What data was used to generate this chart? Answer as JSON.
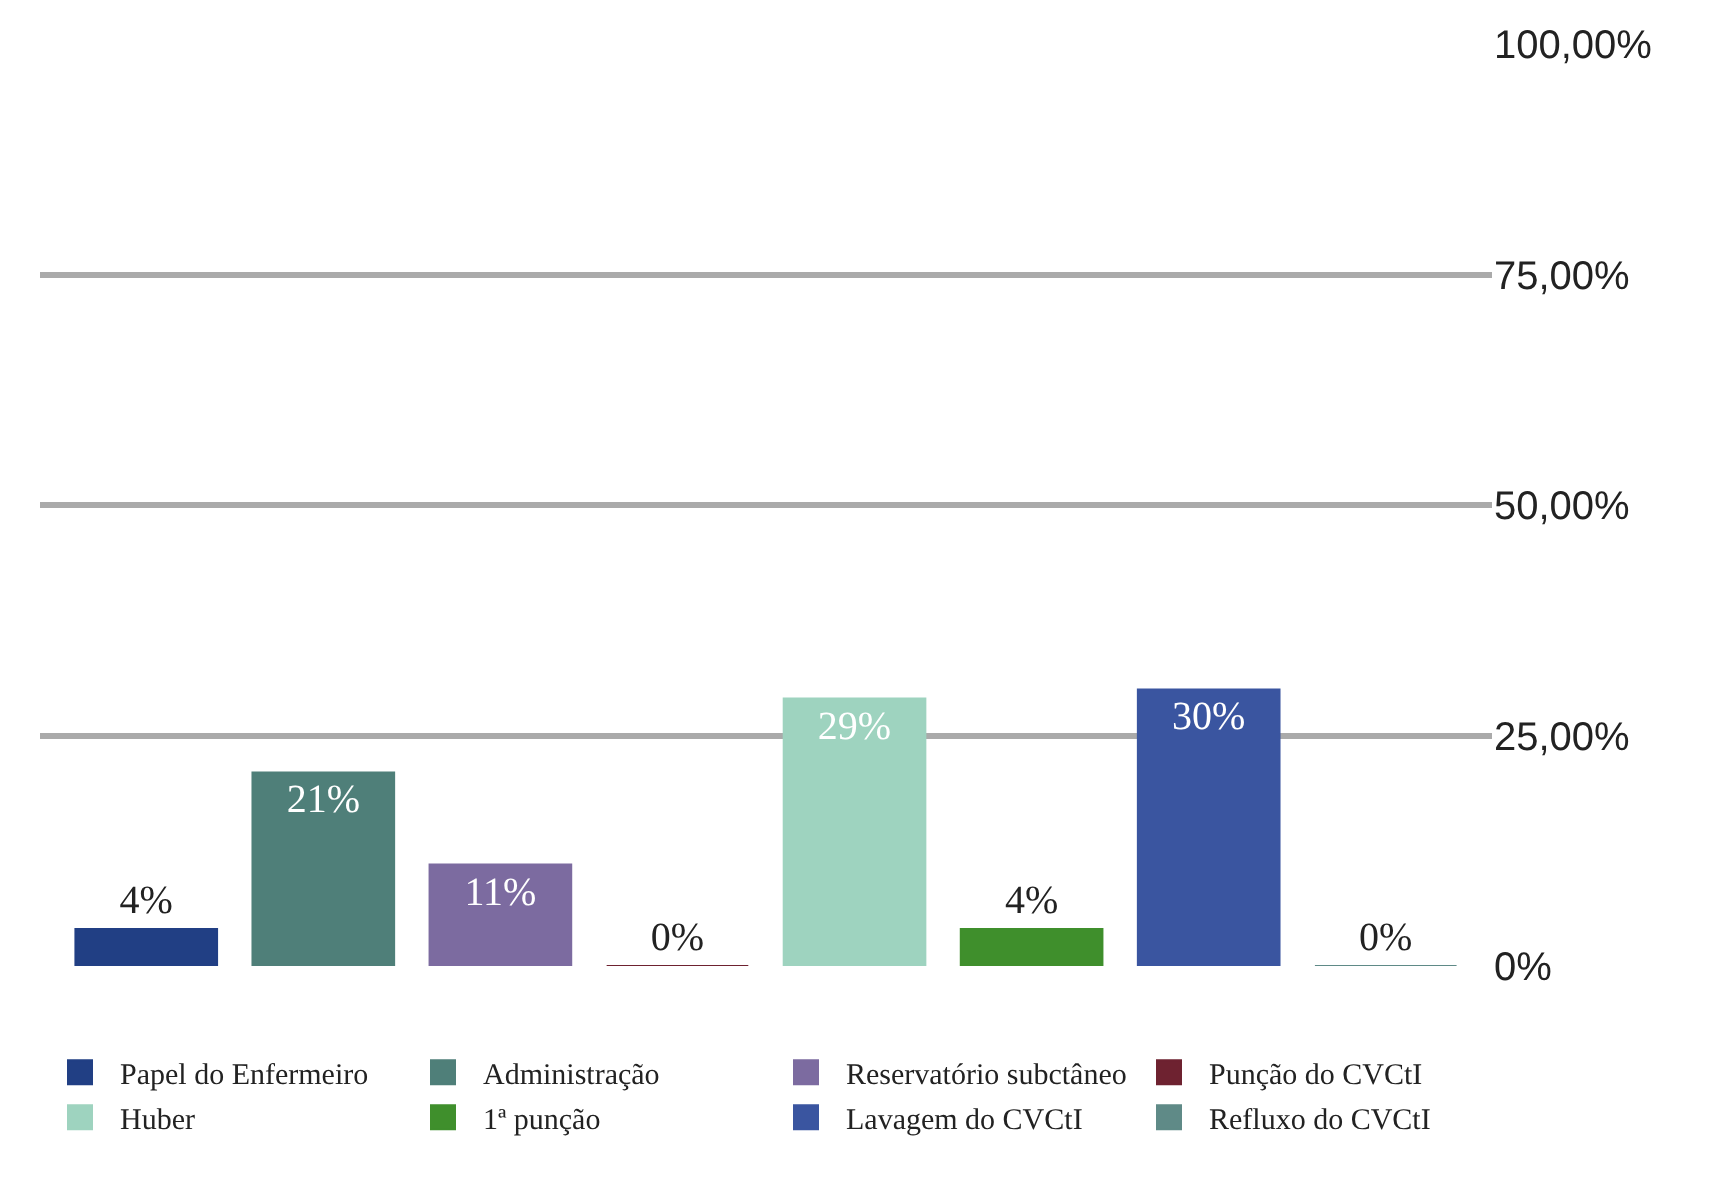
{
  "chart_data": {
    "type": "bar",
    "categories": [
      null,
      null,
      null,
      null,
      null,
      null,
      null,
      null
    ],
    "series": [
      {
        "name": "Papel do Enfermeiro",
        "color": "#213f84",
        "values": [
          4,
          null,
          null,
          null,
          null,
          null,
          null,
          null
        ],
        "value_labels": [
          "4%",
          null,
          null,
          null,
          null,
          null,
          null,
          null
        ]
      },
      {
        "name": "Administração",
        "color": "#4f7f79",
        "values": [
          null,
          21,
          null,
          null,
          null,
          null,
          null,
          null
        ],
        "value_labels": [
          null,
          "21%",
          null,
          null,
          null,
          null,
          null,
          null
        ]
      },
      {
        "name": "Reservatório subctâneo",
        "color": "#7c6ba0",
        "values": [
          null,
          null,
          11,
          null,
          null,
          null,
          null,
          null
        ],
        "value_labels": [
          null,
          null,
          "11%",
          null,
          null,
          null,
          null,
          null
        ]
      },
      {
        "name": "Punção do CVCtI",
        "color": "#6e2230",
        "values": [
          null,
          null,
          null,
          0,
          null,
          null,
          null,
          null
        ],
        "value_labels": [
          null,
          null,
          null,
          "0%",
          null,
          null,
          null,
          null
        ]
      },
      {
        "name": "Huber",
        "color": "#9ed3bf",
        "values": [
          null,
          null,
          null,
          null,
          29,
          null,
          null,
          null
        ],
        "value_labels": [
          null,
          null,
          null,
          null,
          "29%",
          null,
          null,
          null
        ]
      },
      {
        "name": "1ª punção",
        "color": "#3f8f2c",
        "values": [
          null,
          null,
          null,
          null,
          null,
          4,
          null,
          null
        ],
        "value_labels": [
          null,
          null,
          null,
          null,
          null,
          "4%",
          null,
          null
        ]
      },
      {
        "name": "Lavagem do CVCtI",
        "color": "#3a55a0",
        "values": [
          null,
          null,
          null,
          null,
          null,
          null,
          30,
          null
        ],
        "value_labels": [
          null,
          null,
          null,
          null,
          null,
          null,
          "30%",
          null
        ]
      },
      {
        "name": "Refluxo do CVCtI",
        "color": "#5f8a87",
        "values": [
          null,
          null,
          null,
          null,
          null,
          null,
          null,
          0
        ],
        "value_labels": [
          null,
          null,
          null,
          null,
          null,
          null,
          null,
          "0%"
        ]
      }
    ],
    "ylim": [
      0,
      100
    ],
    "yticks": [
      {
        "value": 0,
        "label": "0%"
      },
      {
        "value": 25,
        "label": "25,00%"
      },
      {
        "value": 50,
        "label": "50,00%"
      },
      {
        "value": 75,
        "label": "75,00%"
      },
      {
        "value": 100,
        "label": "100,00%"
      }
    ],
    "grid": "y",
    "legend": "bottom"
  }
}
